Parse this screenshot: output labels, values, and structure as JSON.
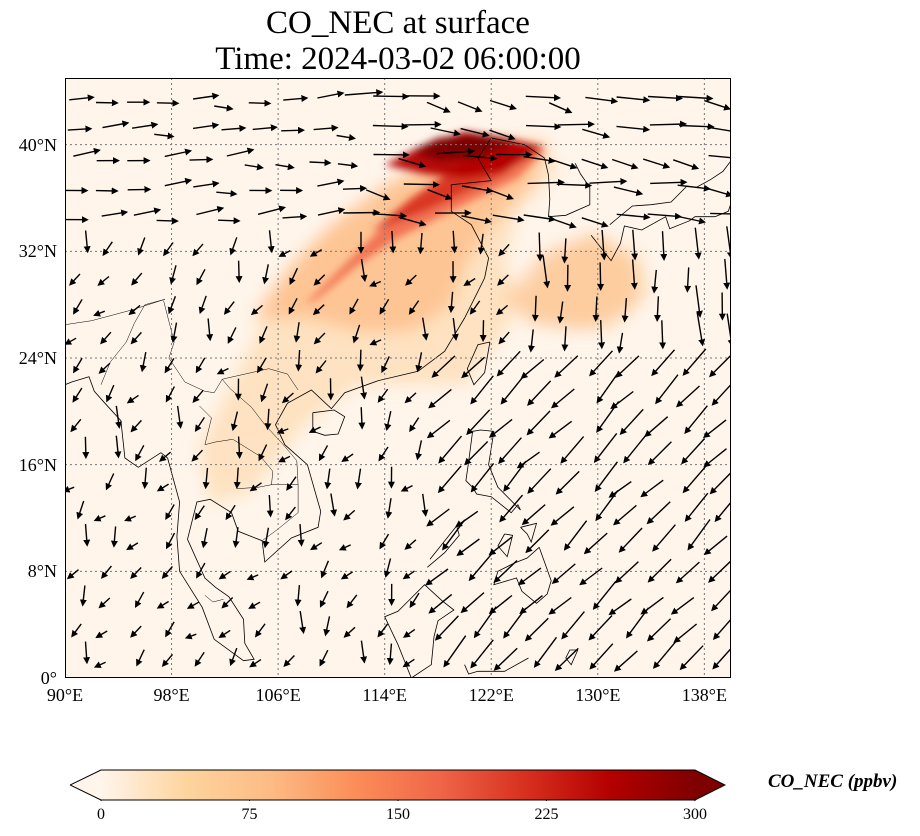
{
  "title": {
    "line1": "CO_NEC at surface",
    "line2": "Time: 2024-03-02 06:00:00"
  },
  "map": {
    "projection": "PlateCarree",
    "lon_range": [
      90,
      140
    ],
    "lat_range": [
      0,
      45
    ],
    "lat_ticks": [
      {
        "value": 0,
        "label": "0°"
      },
      {
        "value": 8,
        "label": "8°N"
      },
      {
        "value": 16,
        "label": "16°N"
      },
      {
        "value": 24,
        "label": "24°N"
      },
      {
        "value": 32,
        "label": "32°N"
      },
      {
        "value": 40,
        "label": "40°N"
      }
    ],
    "lon_ticks": [
      {
        "value": 90,
        "label": "90°E"
      },
      {
        "value": 98,
        "label": "98°E"
      },
      {
        "value": 106,
        "label": "106°E"
      },
      {
        "value": 114,
        "label": "114°E"
      },
      {
        "value": 122,
        "label": "122°E"
      },
      {
        "value": 130,
        "label": "130°E"
      },
      {
        "value": 138,
        "label": "138°E"
      }
    ],
    "gridlines": true,
    "variable": "CO_NEC",
    "overlay": "surface wind vectors",
    "background_color": "#fff5eb"
  },
  "colorbar": {
    "label": "CO_NEC (ppbv)",
    "cmap": "OrRd",
    "range": [
      0,
      300
    ],
    "extend": "both",
    "ticks": [
      "0",
      "75",
      "150",
      "225",
      "300"
    ],
    "colors": [
      "#fff5eb",
      "#fdd49e",
      "#fdbb84",
      "#fc8d59",
      "#ef6548",
      "#d7301f",
      "#b30000",
      "#7f0000"
    ]
  }
}
